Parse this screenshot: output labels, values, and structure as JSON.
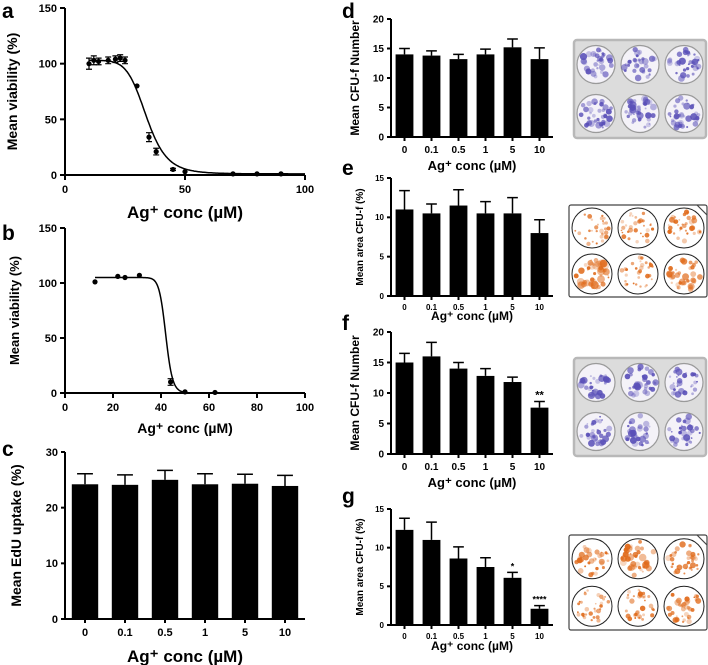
{
  "chart_data": [
    {
      "panel": "a",
      "type": "scatter",
      "xlabel": "Ag⁺ conc (µM)",
      "ylabel": "Mean viability (%)",
      "xlim": [
        0,
        100
      ],
      "ylim": [
        0,
        150
      ],
      "xticks": [
        "0",
        "50",
        "100"
      ],
      "yticks": [
        "0",
        "50",
        "100",
        "150"
      ],
      "points": [
        {
          "x": 10,
          "y": 100,
          "err": 5
        },
        {
          "x": 12,
          "y": 103,
          "err": 4
        },
        {
          "x": 14,
          "y": 102,
          "err": 3
        },
        {
          "x": 18,
          "y": 103,
          "err": 3
        },
        {
          "x": 21,
          "y": 104,
          "err": 3
        },
        {
          "x": 23,
          "y": 105,
          "err": 3
        },
        {
          "x": 25,
          "y": 103,
          "err": 3
        },
        {
          "x": 30,
          "y": 80,
          "err": 0
        },
        {
          "x": 35,
          "y": 34,
          "err": 4
        },
        {
          "x": 38,
          "y": 21,
          "err": 3
        },
        {
          "x": 45,
          "y": 5,
          "err": 1
        },
        {
          "x": 50,
          "y": 3,
          "err": 0
        },
        {
          "x": 70,
          "y": 1,
          "err": 0
        },
        {
          "x": 80,
          "y": 1,
          "err": 0
        },
        {
          "x": 90,
          "y": 1,
          "err": 0
        }
      ],
      "fit": {
        "top": 103,
        "bottom": 1,
        "ec50": 34,
        "hill": 8
      }
    },
    {
      "panel": "b",
      "type": "scatter",
      "xlabel": "Ag⁺ conc (µM)",
      "ylabel": "Mean viability (%)",
      "xlim": [
        0,
        100
      ],
      "ylim": [
        0,
        150
      ],
      "xticks": [
        "0",
        "20",
        "40",
        "60",
        "80",
        "100"
      ],
      "yticks": [
        "0",
        "50",
        "100",
        "150"
      ],
      "points": [
        {
          "x": 12.5,
          "y": 101,
          "err": 0
        },
        {
          "x": 22,
          "y": 106,
          "err": 0
        },
        {
          "x": 25,
          "y": 105,
          "err": 0
        },
        {
          "x": 31,
          "y": 107,
          "err": 0
        },
        {
          "x": 44,
          "y": 10,
          "err": 3
        },
        {
          "x": 50,
          "y": 1,
          "err": 0
        },
        {
          "x": 62.5,
          "y": 0.5,
          "err": 0
        }
      ],
      "fit": {
        "top": 105,
        "bottom": 0,
        "ec50": 42,
        "hill": 30
      }
    },
    {
      "panel": "c",
      "type": "bar",
      "xlabel": "Ag⁺ conc (µM)",
      "ylabel": "Mean EdU uptake (%)",
      "categories": [
        "0",
        "0.1",
        "0.5",
        "1",
        "5",
        "10"
      ],
      "values": [
        24.2,
        24.1,
        25.0,
        24.2,
        24.3,
        23.9
      ],
      "errors": [
        1.9,
        1.8,
        1.7,
        1.9,
        1.7,
        1.9
      ],
      "ylim": [
        0,
        30
      ],
      "yticks": [
        "0",
        "10",
        "20",
        "30"
      ],
      "significance": [
        "",
        "",
        "",
        "",
        "",
        ""
      ]
    },
    {
      "panel": "d",
      "type": "bar",
      "xlabel": "Ag⁺ conc (µM)",
      "ylabel": "Mean CFU-f Number",
      "categories": [
        "0",
        "0.1",
        "0.5",
        "1",
        "5",
        "10"
      ],
      "values": [
        14.0,
        13.8,
        13.2,
        14.0,
        15.2,
        13.2
      ],
      "errors": [
        1.0,
        0.8,
        0.8,
        0.9,
        1.4,
        1.9
      ],
      "ylim": [
        0,
        20
      ],
      "yticks": [
        "0",
        "5",
        "10",
        "15",
        "20"
      ],
      "significance": [
        "",
        "",
        "",
        "",
        "",
        ""
      ]
    },
    {
      "panel": "e",
      "type": "bar",
      "xlabel": "Ag⁺ conc (µM)",
      "ylabel": "Mean area CFU-f (%)",
      "categories": [
        "0",
        "0.1",
        "0.5",
        "1",
        "5",
        "10"
      ],
      "values": [
        11.0,
        10.5,
        11.5,
        10.5,
        10.5,
        8.0
      ],
      "errors": [
        2.4,
        1.2,
        2.0,
        1.5,
        2.0,
        1.7
      ],
      "ylim": [
        0,
        15
      ],
      "yticks": [
        "0",
        "5",
        "10",
        "15"
      ],
      "significance": [
        "",
        "",
        "",
        "",
        "",
        ""
      ]
    },
    {
      "panel": "f",
      "type": "bar",
      "xlabel": "Ag⁺ conc (µM)",
      "ylabel": "Mean CFU-f Number",
      "categories": [
        "0",
        "0.1",
        "0.5",
        "1",
        "5",
        "10"
      ],
      "values": [
        15.0,
        16.0,
        14.0,
        12.8,
        11.8,
        7.6
      ],
      "errors": [
        1.5,
        2.3,
        1.0,
        1.2,
        0.8,
        1.0
      ],
      "ylim": [
        0,
        20
      ],
      "yticks": [
        "0",
        "5",
        "10",
        "15",
        "20"
      ],
      "significance": [
        "",
        "",
        "",
        "",
        "",
        "**"
      ]
    },
    {
      "panel": "g",
      "type": "bar",
      "xlabel": "Ag⁺ conc (µM)",
      "ylabel": "Mean area CFU-f (%)",
      "categories": [
        "0",
        "0.1",
        "0.5",
        "1",
        "5",
        "10"
      ],
      "values": [
        12.3,
        11.0,
        8.6,
        7.5,
        6.1,
        2.1
      ],
      "errors": [
        1.5,
        2.3,
        1.5,
        1.2,
        0.7,
        0.4
      ],
      "ylim": [
        0,
        15
      ],
      "yticks": [
        "0",
        "5",
        "10",
        "15"
      ],
      "significance": [
        "",
        "",
        "",
        "",
        "*",
        "****"
      ]
    }
  ],
  "images": [
    {
      "panel": "d",
      "stain": "crystal-violet",
      "wells": [
        [
          0.35,
          0.28,
          0.4
        ],
        [
          0.45,
          0.5,
          0.55
        ]
      ]
    },
    {
      "panel": "e",
      "stain": "alizarin-orange",
      "wells": [
        [
          0.3,
          0.3,
          0.4
        ],
        [
          0.6,
          0.3,
          0.5
        ]
      ]
    },
    {
      "panel": "f",
      "stain": "crystal-violet",
      "wells": [
        [
          0.3,
          0.35,
          0.3
        ],
        [
          0.3,
          0.3,
          0.35
        ]
      ]
    },
    {
      "panel": "g",
      "stain": "alizarin-orange",
      "wells": [
        [
          0.4,
          0.55,
          0.45
        ],
        [
          0.3,
          0.35,
          0.45
        ]
      ]
    }
  ],
  "colors": {
    "bar": "#000000",
    "axis": "#000000",
    "violet": "#5a50b8",
    "orange": "#e06a1a"
  }
}
